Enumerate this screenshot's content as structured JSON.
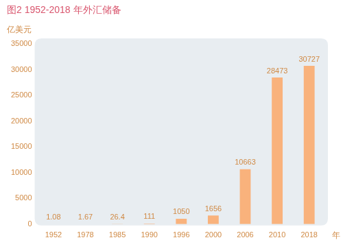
{
  "chart_data": {
    "type": "bar",
    "title": "图2 1952-2018 年外汇储备",
    "y_label": "亿美元",
    "x_label": "年",
    "categories": [
      "1952",
      "1978",
      "1985",
      "1990",
      "1996",
      "2000",
      "2006",
      "2010",
      "2018"
    ],
    "values": [
      1.08,
      1.67,
      26.4,
      111,
      1050,
      1656,
      10663,
      28473,
      30727
    ],
    "color": "#f9b27c",
    "ylim": [
      0,
      35000
    ],
    "yticks": [
      0,
      5000,
      10000,
      15000,
      20000,
      25000,
      30000,
      35000
    ],
    "grid": false,
    "data_labels": true
  }
}
